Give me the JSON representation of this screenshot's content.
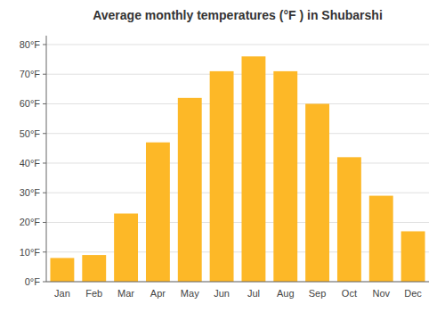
{
  "chart_data": {
    "type": "bar",
    "title": "Average monthly temperatures (°F ) in Shubarshi",
    "categories": [
      "Jan",
      "Feb",
      "Mar",
      "Apr",
      "May",
      "Jun",
      "Jul",
      "Aug",
      "Sep",
      "Oct",
      "Nov",
      "Dec"
    ],
    "values": [
      8,
      9,
      23,
      47,
      62,
      71,
      76,
      71,
      60,
      42,
      29,
      17
    ],
    "color": "#FDB827",
    "ylim": [
      0,
      83
    ],
    "yticks": [
      {
        "value": 0,
        "label": "0°F"
      },
      {
        "value": 10,
        "label": "10°F"
      },
      {
        "value": 20,
        "label": "20°F"
      },
      {
        "value": 30,
        "label": "30°F"
      },
      {
        "value": 40,
        "label": "40°F"
      },
      {
        "value": 50,
        "label": "50°F"
      },
      {
        "value": 60,
        "label": "60°F"
      },
      {
        "value": 70,
        "label": "70°F"
      },
      {
        "value": 80,
        "label": "80°F"
      }
    ],
    "grid": true
  }
}
